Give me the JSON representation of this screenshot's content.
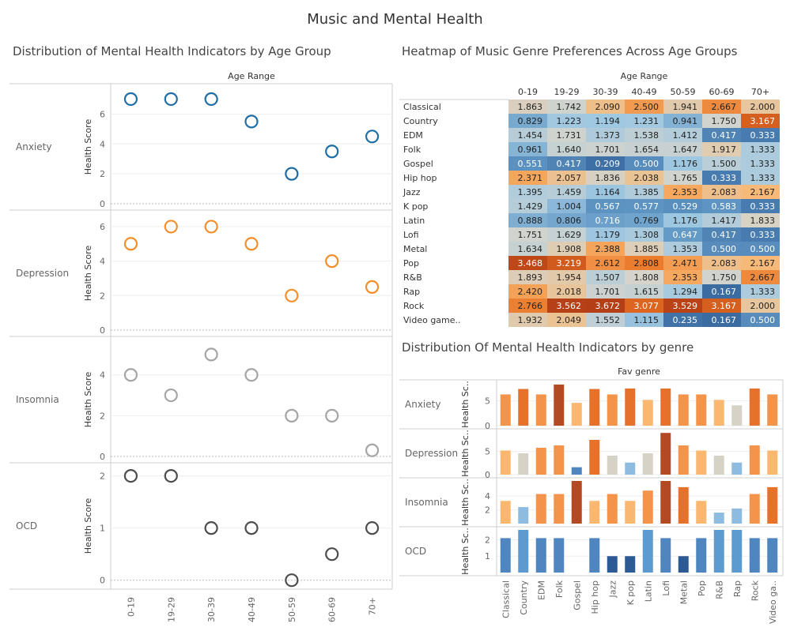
{
  "page_title": "Music and Mental Health",
  "chart_data": [
    {
      "type": "scatter",
      "title": "Distribution of Mental Health Indicators by Age Group",
      "column_header": "Age Range",
      "ylabel": "Health Score",
      "categories": [
        "0-19",
        "19-29",
        "30-39",
        "40-49",
        "50-59",
        "60-69",
        "70+"
      ],
      "panels": [
        {
          "name": "Anxiety",
          "values": [
            7,
            7,
            7,
            5.5,
            2,
            3.5,
            4.5
          ],
          "color": "#1f6ea5",
          "ylim": [
            0,
            7.5
          ],
          "yticks": [
            0,
            2,
            4,
            6
          ]
        },
        {
          "name": "Depression",
          "values": [
            5,
            6,
            6,
            5,
            2,
            4,
            2.5
          ],
          "color": "#f28e2b",
          "ylim": [
            0,
            6.5
          ],
          "yticks": [
            0,
            2,
            4,
            6
          ]
        },
        {
          "name": "Insomnia",
          "values": [
            4,
            3,
            5,
            4,
            2,
            2,
            0.3
          ],
          "color": "#a5a5a5",
          "ylim": [
            0,
            5.5
          ],
          "yticks": [
            0,
            2,
            4
          ]
        },
        {
          "name": "OCD",
          "values": [
            2,
            2,
            1,
            1,
            0,
            0.5,
            1
          ],
          "color": "#4d4d4d",
          "ylim": [
            -0.05,
            2.1
          ],
          "yticks": [
            0,
            1,
            2
          ]
        }
      ]
    },
    {
      "type": "heatmap",
      "title": "Heatmap of Music Genre Preferences Across Age Groups",
      "column_header": "Age Range",
      "columns": [
        "0-19",
        "19-29",
        "30-39",
        "40-49",
        "50-59",
        "60-69",
        "70+"
      ],
      "rows": [
        "Classical",
        "Country",
        "EDM",
        "Folk",
        "Gospel",
        "Hip hop",
        "Jazz",
        "K pop",
        "Latin",
        "Lofi",
        "Metal",
        "Pop",
        "R&B",
        "Rap",
        "Rock",
        "Video game.."
      ],
      "values": [
        [
          "1.863",
          "1.742",
          "2.090",
          "2.500",
          "1.941",
          "2.667",
          "2.000"
        ],
        [
          "0.829",
          "1.223",
          "1.194",
          "1.231",
          "0.941",
          "1.750",
          "3.167"
        ],
        [
          "1.454",
          "1.731",
          "1.373",
          "1.538",
          "1.412",
          "0.417",
          "0.333"
        ],
        [
          "0.961",
          "1.640",
          "1.701",
          "1.654",
          "1.647",
          "1.917",
          "1.333"
        ],
        [
          "0.551",
          "0.417",
          "0.209",
          "0.500",
          "1.176",
          "1.500",
          "1.333"
        ],
        [
          "2.371",
          "2.057",
          "1.836",
          "2.038",
          "1.765",
          "0.333",
          "1.333"
        ],
        [
          "1.395",
          "1.459",
          "1.164",
          "1.385",
          "2.353",
          "2.083",
          "2.167"
        ],
        [
          "1.429",
          "1.004",
          "0.567",
          "0.577",
          "0.529",
          "0.583",
          "0.333"
        ],
        [
          "0.888",
          "0.806",
          "0.716",
          "0.769",
          "1.176",
          "1.417",
          "1.833"
        ],
        [
          "1.751",
          "1.629",
          "1.179",
          "1.308",
          "0.647",
          "0.417",
          "0.333"
        ],
        [
          "1.634",
          "1.908",
          "2.388",
          "1.885",
          "1.353",
          "0.500",
          "0.500"
        ],
        [
          "3.468",
          "3.219",
          "2.612",
          "2.808",
          "2.471",
          "2.083",
          "2.167"
        ],
        [
          "1.893",
          "1.954",
          "1.507",
          "1.808",
          "2.353",
          "1.750",
          "2.667"
        ],
        [
          "2.420",
          "2.018",
          "1.701",
          "1.615",
          "1.294",
          "0.167",
          "1.333"
        ],
        [
          "2.766",
          "3.562",
          "3.672",
          "3.077",
          "3.529",
          "3.167",
          "2.000"
        ],
        [
          "1.932",
          "2.049",
          "1.552",
          "1.115",
          "0.235",
          "0.167",
          "0.500"
        ]
      ]
    },
    {
      "type": "bar",
      "title": "Distribution Of Mental Health Indicators by genre",
      "column_header": "Fav genre",
      "ylabel": "Health Sc..",
      "categories": [
        "Classical",
        "Country",
        "EDM",
        "Folk",
        "Gospel",
        "Hip hop",
        "Jazz",
        "K pop",
        "Latin",
        "Lofi",
        "Metal",
        "Pop",
        "R&B",
        "Rap",
        "Rock",
        "Video ga.."
      ],
      "panels": [
        {
          "name": "Anxiety",
          "values": [
            6.3,
            7.4,
            6.3,
            8.3,
            4.6,
            7.4,
            6.3,
            7.5,
            5.2,
            7.5,
            6.3,
            6.3,
            5.2,
            4.1,
            7.5,
            6.3
          ],
          "ylim": [
            0,
            8.6
          ],
          "yticks": [
            0,
            5
          ]
        },
        {
          "name": "Depression",
          "values": [
            5.2,
            4.6,
            5.8,
            6.3,
            1.6,
            7.5,
            4.1,
            2.6,
            4.6,
            9.0,
            6.3,
            5.2,
            4.1,
            2.6,
            6.3,
            5.2
          ],
          "ylim": [
            0,
            9.2
          ],
          "yticks": [
            0,
            5
          ]
        },
        {
          "name": "Insomnia",
          "values": [
            3.3,
            2.4,
            4.3,
            4.3,
            6.2,
            3.3,
            4.3,
            3.3,
            4.8,
            6.2,
            5.3,
            3.3,
            1.6,
            2.2,
            4.3,
            5.3
          ],
          "ylim": [
            0,
            6.2
          ],
          "yticks": [
            2,
            4
          ]
        },
        {
          "name": "OCD",
          "values": [
            2.1,
            2.6,
            2.1,
            2.1,
            0.0,
            2.1,
            1.0,
            1.0,
            2.6,
            2.1,
            1.0,
            2.1,
            2.6,
            2.6,
            2.1,
            2.1
          ],
          "ylim": [
            0,
            2.6
          ],
          "yticks": [
            1,
            2
          ]
        }
      ]
    }
  ]
}
